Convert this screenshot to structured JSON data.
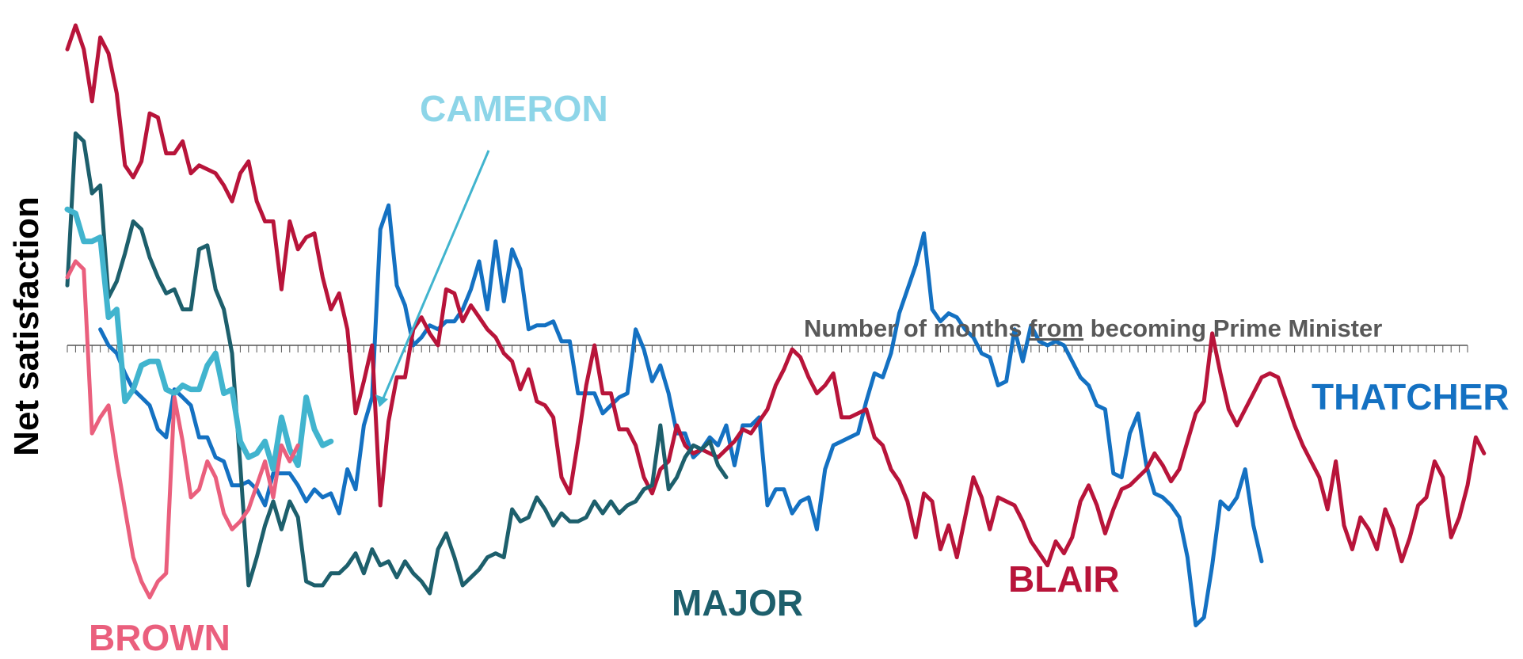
{
  "chart_data": {
    "type": "line",
    "ylabel": "Net satisfaction",
    "xlabel_parts": [
      "Number of months ",
      "from",
      " becoming Prime Minister"
    ],
    "x_start": 0,
    "x_end": 170,
    "tick_interval": 1,
    "ylim": [
      -75,
      82
    ],
    "grid": false,
    "legend": "inline labels",
    "series": [
      {
        "name": "THATCHER",
        "color": "#1471c2",
        "values": [
          null,
          null,
          null,
          null,
          4,
          0,
          -2,
          -7,
          -11,
          -13,
          -15,
          -21,
          -23,
          -11,
          -13,
          -15,
          -23,
          -23,
          -28,
          -29,
          -35,
          -35,
          -34,
          -36,
          -40,
          -32,
          -32,
          -32,
          -35,
          -39,
          -36,
          -38,
          -37,
          -42,
          -31,
          -36,
          -20,
          -13,
          29,
          35,
          15,
          10,
          0,
          2,
          5,
          4,
          6,
          6,
          9,
          14,
          21,
          9,
          26,
          11,
          24,
          19,
          4,
          5,
          5,
          6,
          1,
          1,
          -12,
          -12,
          -12,
          -17,
          -15,
          -13,
          -12,
          4,
          -1,
          -9,
          -5,
          -12,
          -22,
          -22,
          -28,
          -26,
          -23,
          -25,
          -20,
          -30,
          -20,
          -20,
          -18,
          -40,
          -36,
          -36,
          -42,
          -39,
          -38,
          -46,
          -31,
          -25,
          -24,
          -23,
          -22,
          -14,
          -7,
          -8,
          -2,
          8,
          14,
          20,
          28,
          9,
          6,
          8,
          7,
          4,
          2,
          -2,
          -3,
          -10,
          -9,
          4,
          -4,
          5,
          1,
          0,
          1,
          0,
          -4,
          -8,
          -10,
          -15,
          -16,
          -32,
          -33,
          -22,
          -17,
          -30,
          -37,
          -38,
          -40,
          -43,
          -53,
          -70,
          -68,
          -55,
          -39,
          -41,
          -38,
          -31,
          -45,
          -54
        ]
      },
      {
        "name": "BLAIR",
        "color": "#b8143a",
        "values": [
          74,
          80,
          74,
          61,
          77,
          73,
          63,
          45,
          42,
          46,
          58,
          57,
          48,
          48,
          51,
          43,
          45,
          44,
          43,
          40,
          36,
          43,
          46,
          36,
          31,
          31,
          14,
          31,
          24,
          27,
          28,
          17,
          9,
          13,
          4,
          -17,
          -9,
          0,
          -40,
          -19,
          -8,
          -8,
          4,
          7,
          3,
          0,
          14,
          13,
          6,
          10,
          7,
          4,
          2,
          -2,
          -4,
          -11,
          -6,
          -14,
          -15,
          -18,
          -33,
          -37,
          -24,
          -10,
          0,
          -12,
          -12,
          -21,
          -21,
          -25,
          -33,
          -37,
          -31,
          -29,
          -20,
          -25,
          -27,
          -26,
          -27,
          -28,
          -26,
          -24,
          -21,
          -22,
          -19,
          -16,
          -10,
          -6,
          -1,
          -3,
          -8,
          -12,
          -10,
          -7,
          -18,
          -18,
          -17,
          -16,
          -23,
          -25,
          -31,
          -34,
          -39,
          -48,
          -37,
          -39,
          -51,
          -45,
          -53,
          -43,
          -33,
          -38,
          -46,
          -38,
          -39,
          -40,
          -44,
          -49,
          -52,
          -55,
          -49,
          -52,
          -48,
          -39,
          -35,
          -40,
          -47,
          -41,
          -36,
          -35,
          -33,
          -31,
          -27,
          -30,
          -34,
          -31,
          -24,
          -17,
          -14,
          3,
          -7,
          -16,
          -20,
          -16,
          -12,
          -8,
          -7,
          -8,
          -14,
          -20,
          -25,
          -29,
          -33,
          -41,
          -29,
          -45,
          -51,
          -43,
          -46,
          -51,
          -41,
          -46,
          -54,
          -48,
          -40,
          -38,
          -29,
          -33,
          -48,
          -43,
          -35,
          -23,
          -27
        ]
      },
      {
        "name": "MAJOR",
        "color": "#1d5f6c",
        "values": [
          15,
          53,
          51,
          38,
          40,
          12,
          16,
          23,
          31,
          29,
          22,
          17,
          13,
          14,
          9,
          9,
          24,
          25,
          14,
          9,
          -2,
          -30,
          -60,
          -53,
          -45,
          -39,
          -46,
          -39,
          -43,
          -59,
          -60,
          -60,
          -57,
          -57,
          -55,
          -52,
          -57,
          -51,
          -55,
          -54,
          -58,
          -54,
          -57,
          -59,
          -62,
          -51,
          -47,
          -53,
          -60,
          -58,
          -56,
          -53,
          -52,
          -53,
          -41,
          -44,
          -43,
          -38,
          -41,
          -45,
          -42,
          -44,
          -44,
          -43,
          -39,
          -42,
          -39,
          -42,
          -40,
          -39,
          -36,
          -35,
          -20,
          -36,
          -33,
          -28,
          -25,
          -26,
          -24,
          -30,
          -33
        ]
      },
      {
        "name": "CAMERON",
        "color": "#41b4ce",
        "values": [
          34,
          33,
          26,
          26,
          27,
          7,
          9,
          -14,
          -11,
          -5,
          -4,
          -4,
          -11,
          -12,
          -10,
          -11,
          -11,
          -5,
          -2,
          -12,
          -11,
          -24,
          -28,
          -27,
          -24,
          -31,
          -18,
          -26,
          -30,
          -13,
          -21,
          -25,
          -24
        ]
      },
      {
        "name": "BROWN",
        "color": "#ea5f7d",
        "values": [
          17,
          21,
          19,
          -22,
          -18,
          -15,
          -29,
          -41,
          -53,
          -59,
          -63,
          -59,
          -57,
          -13,
          -24,
          -38,
          -36,
          -29,
          -33,
          -42,
          -46,
          -44,
          -41,
          -35,
          -29,
          -38,
          -25,
          -29,
          -25
        ]
      }
    ],
    "labels": {
      "thatcher": "THATCHER",
      "blair": "BLAIR",
      "major": "MAJOR",
      "cameron": "CAMERON",
      "brown": "BROWN"
    }
  }
}
